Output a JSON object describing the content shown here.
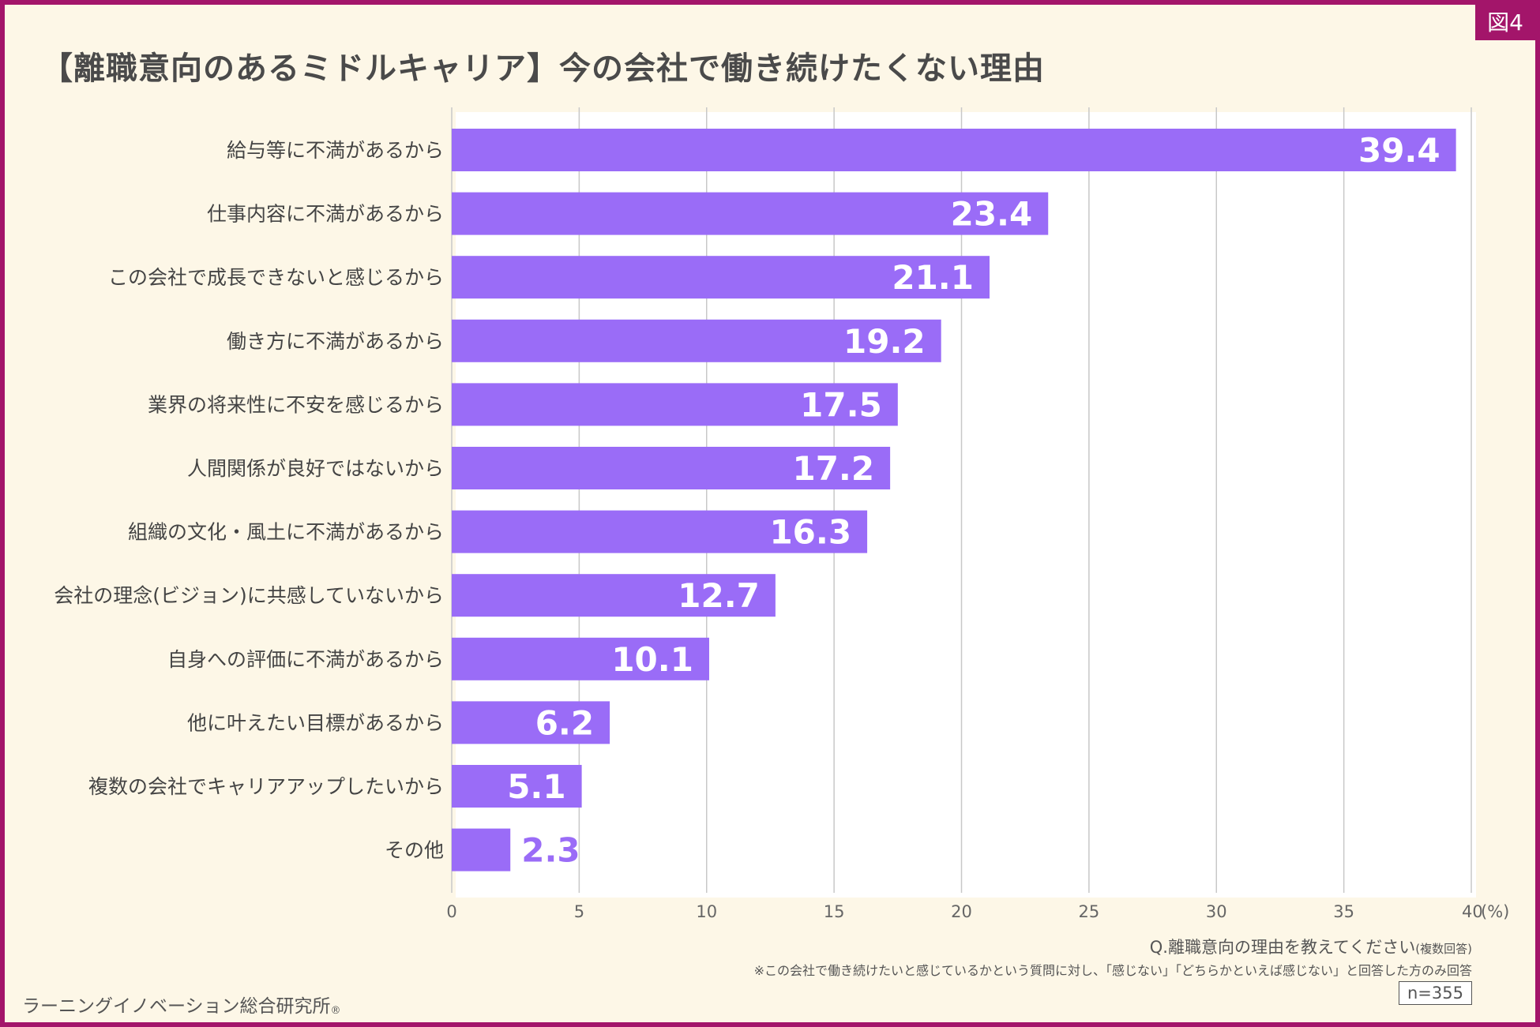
{
  "figure_tag": "図4",
  "question": {
    "main": "Q.離職意向の理由を教えてください",
    "suffix": "(複数回答)"
  },
  "note": "※この会社で働き続けたいと感じているかという質問に対し、「感じない」「どちらかといえば感じない」と回答した方のみ回答",
  "sample_size": "n=355",
  "publisher": {
    "name": "ラーニングイノベーション総合研究所",
    "mark": "®"
  },
  "colors": {
    "bar": "#9a6cf7",
    "frame": "#a3156a",
    "background": "#fdf7e7",
    "grid": "#c8c8c8"
  },
  "chart_data": {
    "type": "bar",
    "orientation": "horizontal",
    "title": "【離職意向のあるミドルキャリア】今の会社で働き続けたくない理由",
    "unit_label": "(%)",
    "xlim": [
      0,
      40
    ],
    "xticks": [
      0,
      5,
      10,
      15,
      20,
      25,
      30,
      35,
      40
    ],
    "grid": true,
    "categories": [
      "給与等に不満があるから",
      "仕事内容に不満があるから",
      "この会社で成長できないと感じるから",
      "働き方に不満があるから",
      "業界の将来性に不安を感じるから",
      "人間関係が良好ではないから",
      "組織の文化・風土に不満があるから",
      "会社の理念(ビジョン)に共感していないから",
      "自身への評価に不満があるから",
      "他に叶えたい目標があるから",
      "複数の会社でキャリアアップしたいから",
      "その他"
    ],
    "values": [
      39.4,
      23.4,
      21.1,
      19.2,
      17.5,
      17.2,
      16.3,
      12.7,
      10.1,
      6.2,
      5.1,
      2.3
    ],
    "value_labels": [
      "39.4",
      "23.4",
      "21.1",
      "19.2",
      "17.5",
      "17.2",
      "16.3",
      "12.7",
      "10.1",
      "6.2",
      "5.1",
      "2.3"
    ]
  }
}
